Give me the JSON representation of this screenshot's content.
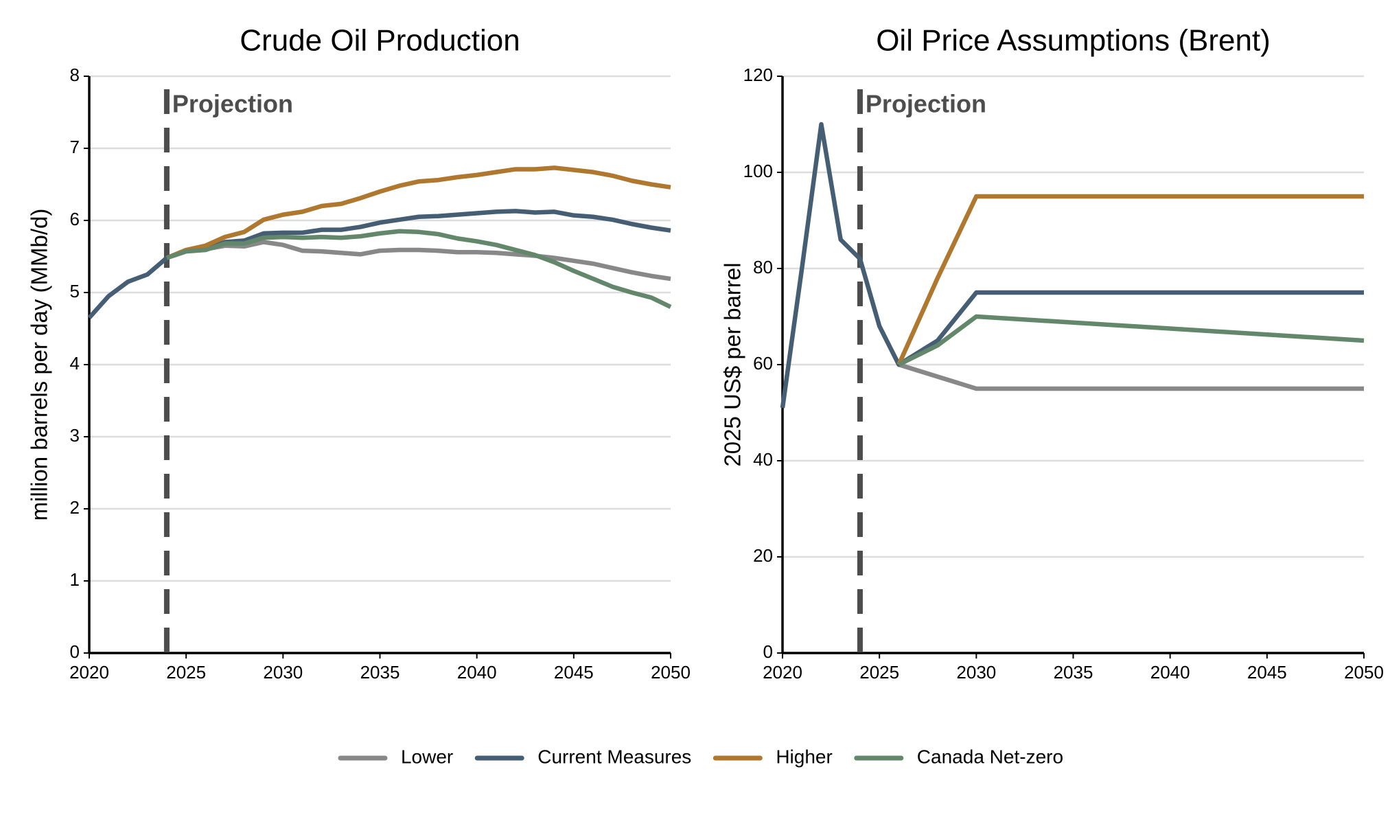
{
  "chart_data": [
    {
      "type": "line",
      "title": "Crude Oil Production",
      "y_label": "million barrels per day (MMb/d)",
      "x": [
        2020,
        2021,
        2022,
        2023,
        2024,
        2025,
        2026,
        2027,
        2028,
        2029,
        2030,
        2031,
        2032,
        2033,
        2034,
        2035,
        2036,
        2037,
        2038,
        2039,
        2040,
        2041,
        2042,
        2043,
        2044,
        2045,
        2046,
        2047,
        2048,
        2049,
        2050
      ],
      "xlim": [
        2020,
        2050
      ],
      "xticks": [
        2020,
        2025,
        2030,
        2035,
        2040,
        2045,
        2050
      ],
      "ylim": [
        0,
        8
      ],
      "yticks": [
        0,
        1,
        2,
        3,
        4,
        5,
        6,
        7,
        8
      ],
      "grid": true,
      "legend": "bottom",
      "projection": {
        "x": 2024,
        "label": "Projection"
      },
      "series": [
        {
          "name": "Lower",
          "color": "#888888",
          "values": [
            null,
            null,
            null,
            null,
            5.48,
            5.58,
            5.6,
            5.65,
            5.64,
            5.7,
            5.66,
            5.58,
            5.57,
            5.55,
            5.53,
            5.58,
            5.59,
            5.59,
            5.58,
            5.56,
            5.56,
            5.55,
            5.53,
            5.51,
            5.48,
            5.44,
            5.4,
            5.34,
            5.28,
            5.23,
            5.19
          ]
        },
        {
          "name": "Current Measures",
          "color": "#465e74",
          "values": [
            4.65,
            4.95,
            5.15,
            5.25,
            5.48,
            5.58,
            5.6,
            5.7,
            5.72,
            5.82,
            5.83,
            5.83,
            5.87,
            5.87,
            5.91,
            5.97,
            6.01,
            6.05,
            6.06,
            6.08,
            6.1,
            6.12,
            6.13,
            6.11,
            6.12,
            6.07,
            6.05,
            6.01,
            5.95,
            5.9,
            5.86
          ]
        },
        {
          "name": "Higher",
          "color": "#b0772f",
          "values": [
            null,
            null,
            null,
            null,
            5.48,
            5.59,
            5.65,
            5.77,
            5.84,
            6.01,
            6.08,
            6.12,
            6.2,
            6.23,
            6.31,
            6.4,
            6.48,
            6.54,
            6.56,
            6.6,
            6.63,
            6.67,
            6.71,
            6.71,
            6.73,
            6.7,
            6.67,
            6.62,
            6.55,
            6.5,
            6.46
          ]
        },
        {
          "name": "Canada Net-zero",
          "color": "#63876a",
          "values": [
            null,
            null,
            null,
            null,
            5.48,
            5.57,
            5.59,
            5.68,
            5.68,
            5.76,
            5.77,
            5.76,
            5.77,
            5.76,
            5.78,
            5.82,
            5.85,
            5.84,
            5.81,
            5.75,
            5.71,
            5.66,
            5.59,
            5.52,
            5.42,
            5.3,
            5.19,
            5.08,
            5.0,
            4.93,
            4.8
          ]
        }
      ]
    },
    {
      "type": "line",
      "title": "Oil Price Assumptions (Brent)",
      "y_label": "2025 US$ per barrel",
      "x": [
        2020,
        2021,
        2022,
        2023,
        2024,
        2025,
        2026,
        2028,
        2030,
        2050
      ],
      "xlim": [
        2020,
        2050
      ],
      "xticks": [
        2020,
        2025,
        2030,
        2035,
        2040,
        2045,
        2050
      ],
      "ylim": [
        0,
        120
      ],
      "yticks": [
        0,
        20,
        40,
        60,
        80,
        100,
        120
      ],
      "grid": true,
      "projection": {
        "x": 2024,
        "label": "Projection"
      },
      "series": [
        {
          "color": "#888888",
          "values": [
            null,
            null,
            null,
            null,
            null,
            null,
            60,
            57.5,
            55,
            55
          ]
        },
        {
          "color": "#465e74",
          "values": [
            51,
            80,
            110,
            86,
            82,
            68,
            60,
            65,
            75,
            75
          ]
        },
        {
          "color": "#b0772f",
          "values": [
            null,
            null,
            null,
            null,
            null,
            null,
            60,
            78,
            95,
            95
          ]
        },
        {
          "color": "#63876a",
          "values": [
            null,
            null,
            null,
            null,
            null,
            null,
            60,
            64,
            70,
            65
          ]
        }
      ]
    }
  ]
}
